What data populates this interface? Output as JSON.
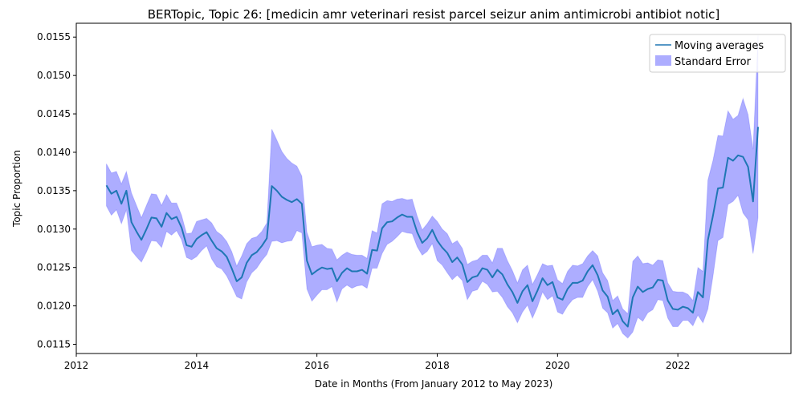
{
  "chart_data": {
    "type": "line",
    "title": "BERTopic, Topic 26: [medicin amr veterinari resist parcel seizur anim antimicrobi antibiot notic]",
    "xlabel": "Date in Months (From January 2012 to May 2023)",
    "ylabel": "Topic Proportion",
    "xlim": [
      2012.0,
      2023.88
    ],
    "ylim": [
      0.01138,
      0.01568
    ],
    "x_ticks": [
      2012,
      2014,
      2016,
      2018,
      2020,
      2022
    ],
    "x_tick_labels": [
      "2012",
      "2014",
      "2016",
      "2018",
      "2020",
      "2022"
    ],
    "y_ticks": [
      0.0115,
      0.012,
      0.0125,
      0.013,
      0.0135,
      0.014,
      0.0145,
      0.015,
      0.0155
    ],
    "y_tick_labels": [
      "0.0115",
      "0.0120",
      "0.0125",
      "0.0130",
      "0.0135",
      "0.0140",
      "0.0145",
      "0.0150",
      "0.0155"
    ],
    "grid": false,
    "legend_position": "top-right",
    "colors": {
      "line": "#1f77b4",
      "band": "#0000ff",
      "band_opacity": 0.32
    },
    "series": [
      {
        "name": "Moving averages",
        "x": [
          2012.5,
          2012.583,
          2012.667,
          2012.75,
          2012.833,
          2012.917,
          2013.0,
          2013.083,
          2013.167,
          2013.25,
          2013.333,
          2013.417,
          2013.5,
          2013.583,
          2013.667,
          2013.75,
          2013.833,
          2013.917,
          2014.0,
          2014.083,
          2014.167,
          2014.25,
          2014.333,
          2014.417,
          2014.5,
          2014.583,
          2014.667,
          2014.75,
          2014.833,
          2014.917,
          2015.0,
          2015.083,
          2015.167,
          2015.25,
          2015.333,
          2015.417,
          2015.5,
          2015.583,
          2015.667,
          2015.75,
          2015.833,
          2015.917,
          2016.0,
          2016.083,
          2016.167,
          2016.25,
          2016.333,
          2016.417,
          2016.5,
          2016.583,
          2016.667,
          2016.75,
          2016.833,
          2016.917,
          2017.0,
          2017.083,
          2017.167,
          2017.25,
          2017.333,
          2017.417,
          2017.5,
          2017.583,
          2017.667,
          2017.75,
          2017.833,
          2017.917,
          2018.0,
          2018.083,
          2018.167,
          2018.25,
          2018.333,
          2018.417,
          2018.5,
          2018.583,
          2018.667,
          2018.75,
          2018.833,
          2018.917,
          2019.0,
          2019.083,
          2019.167,
          2019.25,
          2019.333,
          2019.417,
          2019.5,
          2019.583,
          2019.667,
          2019.75,
          2019.833,
          2019.917,
          2020.0,
          2020.083,
          2020.167,
          2020.25,
          2020.333,
          2020.417,
          2020.5,
          2020.583,
          2020.667,
          2020.75,
          2020.833,
          2020.917,
          2021.0,
          2021.083,
          2021.167,
          2021.25,
          2021.333,
          2021.417,
          2021.5,
          2021.583,
          2021.667,
          2021.75,
          2021.833,
          2021.917,
          2022.0,
          2022.083,
          2022.167,
          2022.25,
          2022.333,
          2022.417,
          2022.5,
          2022.583,
          2022.667,
          2022.75,
          2022.833,
          2022.917,
          2023.0,
          2023.083,
          2023.167,
          2023.25,
          2023.333
        ],
        "y": [
          0.01357,
          0.01346,
          0.0135,
          0.01333,
          0.0135,
          0.01309,
          0.01297,
          0.01286,
          0.013,
          0.01315,
          0.01314,
          0.01303,
          0.01321,
          0.01313,
          0.01316,
          0.01302,
          0.01279,
          0.01277,
          0.01287,
          0.01292,
          0.01296,
          0.01285,
          0.01275,
          0.01271,
          0.01264,
          0.01249,
          0.01232,
          0.01237,
          0.01256,
          0.01266,
          0.0127,
          0.01278,
          0.01288,
          0.01356,
          0.0135,
          0.01342,
          0.01338,
          0.01335,
          0.01339,
          0.01333,
          0.01259,
          0.01241,
          0.01246,
          0.0125,
          0.01248,
          0.01249,
          0.01232,
          0.01243,
          0.01249,
          0.01245,
          0.01245,
          0.01247,
          0.01242,
          0.01273,
          0.01272,
          0.01301,
          0.01309,
          0.0131,
          0.01315,
          0.01319,
          0.01316,
          0.01316,
          0.01296,
          0.01282,
          0.01288,
          0.01299,
          0.01285,
          0.01276,
          0.01269,
          0.01257,
          0.01263,
          0.01254,
          0.01231,
          0.01237,
          0.01239,
          0.01249,
          0.01247,
          0.01237,
          0.01247,
          0.01241,
          0.01228,
          0.01218,
          0.01204,
          0.01219,
          0.01227,
          0.01206,
          0.0122,
          0.01236,
          0.01227,
          0.01231,
          0.01211,
          0.01208,
          0.01222,
          0.0123,
          0.0123,
          0.01233,
          0.01245,
          0.01253,
          0.0124,
          0.0122,
          0.01212,
          0.01189,
          0.01195,
          0.0118,
          0.01173,
          0.01211,
          0.01225,
          0.01218,
          0.01222,
          0.01224,
          0.01234,
          0.01233,
          0.01207,
          0.01196,
          0.01195,
          0.01199,
          0.01197,
          0.01191,
          0.01218,
          0.01211,
          0.01286,
          0.01317,
          0.01353,
          0.01354,
          0.01393,
          0.01389,
          0.01396,
          0.01394,
          0.01381,
          0.01336,
          0.01433
        ]
      },
      {
        "name": "Standard Error",
        "x": [
          2012.5,
          2012.583,
          2012.667,
          2012.75,
          2012.833,
          2012.917,
          2013.0,
          2013.083,
          2013.167,
          2013.25,
          2013.333,
          2013.417,
          2013.5,
          2013.583,
          2013.667,
          2013.75,
          2013.833,
          2013.917,
          2014.0,
          2014.083,
          2014.167,
          2014.25,
          2014.333,
          2014.417,
          2014.5,
          2014.583,
          2014.667,
          2014.75,
          2014.833,
          2014.917,
          2015.0,
          2015.083,
          2015.167,
          2015.25,
          2015.333,
          2015.417,
          2015.5,
          2015.583,
          2015.667,
          2015.75,
          2015.833,
          2015.917,
          2016.0,
          2016.083,
          2016.167,
          2016.25,
          2016.333,
          2016.417,
          2016.5,
          2016.583,
          2016.667,
          2016.75,
          2016.833,
          2016.917,
          2017.0,
          2017.083,
          2017.167,
          2017.25,
          2017.333,
          2017.417,
          2017.5,
          2017.583,
          2017.667,
          2017.75,
          2017.833,
          2017.917,
          2018.0,
          2018.083,
          2018.167,
          2018.25,
          2018.333,
          2018.417,
          2018.5,
          2018.583,
          2018.667,
          2018.75,
          2018.833,
          2018.917,
          2019.0,
          2019.083,
          2019.167,
          2019.25,
          2019.333,
          2019.417,
          2019.5,
          2019.583,
          2019.667,
          2019.75,
          2019.833,
          2019.917,
          2020.0,
          2020.083,
          2020.167,
          2020.25,
          2020.333,
          2020.417,
          2020.5,
          2020.583,
          2020.667,
          2020.75,
          2020.833,
          2020.917,
          2021.0,
          2021.083,
          2021.167,
          2021.25,
          2021.333,
          2021.417,
          2021.5,
          2021.583,
          2021.667,
          2021.75,
          2021.833,
          2021.917,
          2022.0,
          2022.083,
          2022.167,
          2022.25,
          2022.333,
          2022.417,
          2022.5,
          2022.583,
          2022.667,
          2022.75,
          2022.833,
          2022.917,
          2023.0,
          2023.083,
          2023.167,
          2023.25,
          2023.333
        ],
        "lower": [
          0.0133,
          0.01318,
          0.01325,
          0.01307,
          0.01325,
          0.01272,
          0.01264,
          0.01257,
          0.0127,
          0.01285,
          0.01284,
          0.01276,
          0.01297,
          0.01292,
          0.01298,
          0.01286,
          0.01263,
          0.0126,
          0.01264,
          0.01272,
          0.01278,
          0.01261,
          0.01251,
          0.01248,
          0.01239,
          0.01226,
          0.01212,
          0.01209,
          0.01231,
          0.01243,
          0.01249,
          0.01259,
          0.01267,
          0.01284,
          0.01285,
          0.01282,
          0.01284,
          0.01285,
          0.01298,
          0.01295,
          0.01222,
          0.01206,
          0.01214,
          0.01221,
          0.01221,
          0.01225,
          0.01205,
          0.01222,
          0.01227,
          0.01223,
          0.01226,
          0.01227,
          0.01223,
          0.01249,
          0.01249,
          0.01268,
          0.0128,
          0.01284,
          0.0129,
          0.01297,
          0.01295,
          0.01294,
          0.01277,
          0.01266,
          0.01271,
          0.01281,
          0.01259,
          0.01253,
          0.01243,
          0.01234,
          0.0124,
          0.01233,
          0.01208,
          0.01219,
          0.01221,
          0.01232,
          0.01228,
          0.01218,
          0.01219,
          0.01211,
          0.01199,
          0.01191,
          0.01178,
          0.01192,
          0.01201,
          0.01184,
          0.01199,
          0.01218,
          0.01208,
          0.01213,
          0.01192,
          0.01189,
          0.012,
          0.01208,
          0.01211,
          0.01211,
          0.01225,
          0.01234,
          0.01219,
          0.01197,
          0.01191,
          0.01171,
          0.01177,
          0.01164,
          0.01158,
          0.01166,
          0.01185,
          0.0118,
          0.01191,
          0.01195,
          0.01208,
          0.01207,
          0.01184,
          0.01173,
          0.01173,
          0.01181,
          0.01181,
          0.01174,
          0.01188,
          0.01178,
          0.01196,
          0.01238,
          0.01285,
          0.01289,
          0.01332,
          0.01336,
          0.01344,
          0.01321,
          0.01312,
          0.01268,
          0.01315
        ],
        "upper": [
          0.01385,
          0.01373,
          0.01375,
          0.01359,
          0.01375,
          0.01347,
          0.01331,
          0.01315,
          0.01331,
          0.01346,
          0.01345,
          0.01331,
          0.01345,
          0.01334,
          0.01334,
          0.01318,
          0.01294,
          0.01295,
          0.0131,
          0.01312,
          0.01314,
          0.01308,
          0.01297,
          0.01292,
          0.01284,
          0.01271,
          0.01252,
          0.01265,
          0.01281,
          0.01288,
          0.0129,
          0.01297,
          0.01308,
          0.0143,
          0.01416,
          0.01401,
          0.01392,
          0.01386,
          0.01382,
          0.01369,
          0.01296,
          0.01277,
          0.01279,
          0.0128,
          0.01275,
          0.01274,
          0.0126,
          0.01266,
          0.0127,
          0.01267,
          0.01266,
          0.01266,
          0.01262,
          0.01298,
          0.01295,
          0.01333,
          0.01337,
          0.01336,
          0.01339,
          0.0134,
          0.01338,
          0.01339,
          0.01317,
          0.01299,
          0.01307,
          0.01317,
          0.0131,
          0.013,
          0.01294,
          0.01281,
          0.01285,
          0.01275,
          0.01254,
          0.01258,
          0.0126,
          0.01266,
          0.01266,
          0.01256,
          0.01275,
          0.01275,
          0.01259,
          0.01246,
          0.0123,
          0.01247,
          0.01253,
          0.01228,
          0.01241,
          0.01255,
          0.01252,
          0.01253,
          0.01234,
          0.01229,
          0.01245,
          0.01253,
          0.01252,
          0.01255,
          0.01265,
          0.01272,
          0.01265,
          0.01243,
          0.01233,
          0.01207,
          0.01213,
          0.01196,
          0.0119,
          0.01258,
          0.01265,
          0.01255,
          0.01256,
          0.01253,
          0.0126,
          0.01259,
          0.0123,
          0.01219,
          0.01218,
          0.01218,
          0.01215,
          0.01207,
          0.0125,
          0.01245,
          0.01364,
          0.01389,
          0.01422,
          0.01421,
          0.01454,
          0.01443,
          0.01448,
          0.0147,
          0.01449,
          0.01404,
          0.01552
        ]
      }
    ]
  }
}
